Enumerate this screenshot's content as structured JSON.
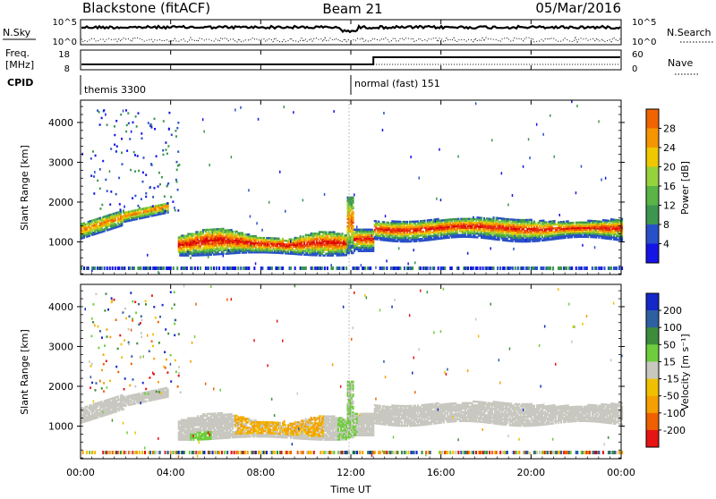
{
  "chart_data": {
    "type": "heatmap",
    "title_left": "Blackstone (fitACF)",
    "title_center": "Beam 21",
    "title_right": "05/Mar/2016",
    "xlabel": "Time UT",
    "x_ticks": [
      "00:00",
      "04:00",
      "08:00",
      "12:00",
      "16:00",
      "20:00",
      "00:00"
    ],
    "x_range_hours": [
      0,
      24
    ],
    "top_panel": {
      "left_label": "N.Sky",
      "right_label": "N.Search",
      "left_ticks": [
        "10^5",
        "10^0"
      ],
      "right_ticks": [
        "10^5",
        "10^0"
      ]
    },
    "freq_panel": {
      "left_label_1": "Freq.",
      "left_label_2": "[MHz]",
      "right_label": "Nave",
      "left_ticks": [
        "18",
        "8"
      ],
      "right_ticks": [
        "60",
        "0"
      ],
      "freq_step_hour": 13.0
    },
    "cpid": {
      "label": "CPID",
      "segments": [
        {
          "start_hour": 0,
          "text": "themis 3300"
        },
        {
          "start_hour": 12.0,
          "text": "normal (fast) 151"
        }
      ]
    },
    "y_label": "Slant Range [km]",
    "y_ticks": [
      1000,
      2000,
      3000,
      4000
    ],
    "y_range_km": [
      180,
      4560
    ],
    "power_panel": {
      "colorbar_label": "Power [dB]",
      "colorbar_ticks": [
        "4",
        "8",
        "12",
        "16",
        "20",
        "24",
        "28"
      ],
      "colors": [
        "#1414e6",
        "#2850c8",
        "#3c9650",
        "#5ab446",
        "#96d23c",
        "#f0c800",
        "#f59600",
        "#f06400",
        "#e62814",
        "#dc0000"
      ]
    },
    "velocity_panel": {
      "colorbar_label": "Velocity [m s⁻¹]",
      "colorbar_ticks": [
        "200",
        "100",
        "50",
        "15",
        "-15",
        "-50",
        "-100",
        "-200"
      ],
      "colors": [
        "#1428c8",
        "#2e5fa0",
        "#3c8c3c",
        "#6ecd3c",
        "#c8c8c0",
        "#f0c000",
        "#f5a000",
        "#f06000",
        "#e61414"
      ]
    }
  }
}
